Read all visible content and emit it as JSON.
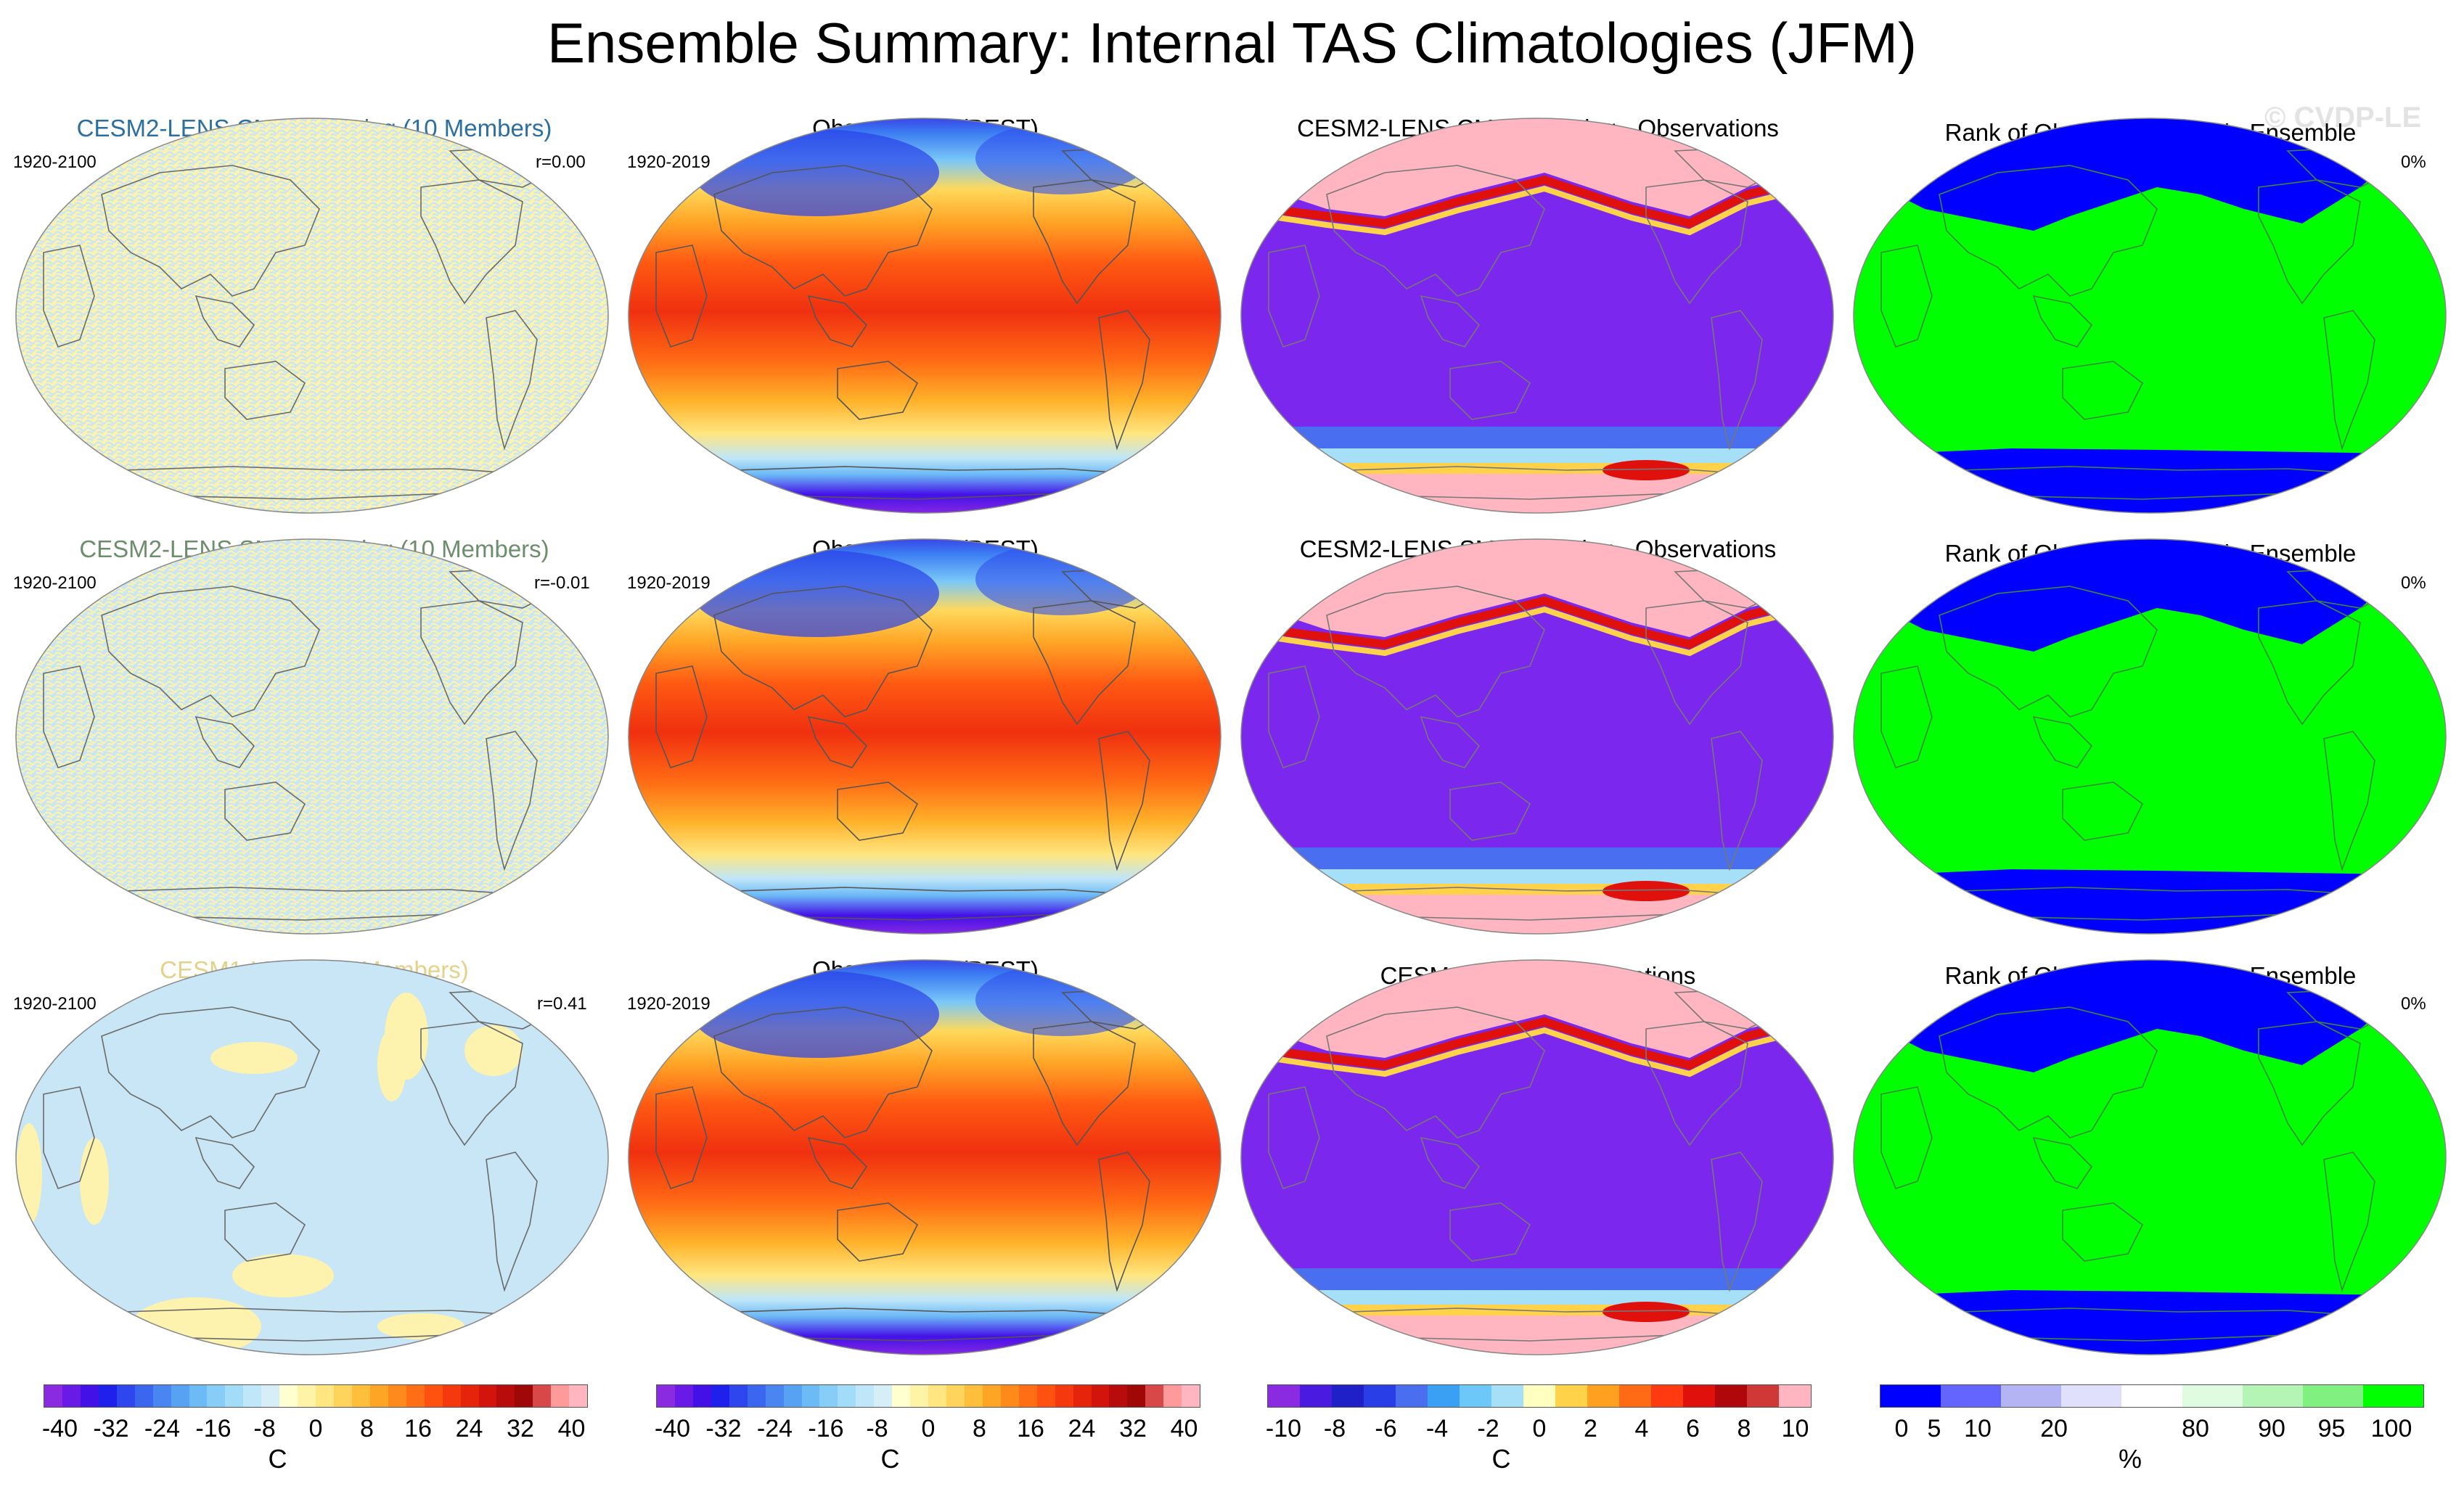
{
  "title": "Ensemble Summary: Internal TAS Climatologies (JFM)",
  "watermark": "© CVDP-LE",
  "colors": {
    "cesm2_cmip6_title": "#2a6fa0",
    "cesm2_smbb_title": "#6c8e6c",
    "cesm1_title": "#e2d28a",
    "land_outline": "#7a7a7a"
  },
  "chart_data": [
    {
      "type": "heatmap",
      "row": 1,
      "col": 1,
      "title": "CESM2-LENS CMIP6 Forcing (10 Members)",
      "period": "1920-2100",
      "stat": "r=0.00",
      "description_of_field": "noise",
      "colorbar": "temperature"
    },
    {
      "type": "heatmap",
      "row": 1,
      "col": 2,
      "title": "Observations (BEST)",
      "period": "1920-2019",
      "stat": "",
      "colorbar": "temperature"
    },
    {
      "type": "heatmap",
      "row": 1,
      "col": 3,
      "title": "CESM2-LENS CMIP6 Forcing - Observations",
      "period": "",
      "stat": "",
      "colorbar": "difference"
    },
    {
      "type": "heatmap",
      "row": 1,
      "col": 4,
      "title": "Rank of Observations within Ensemble",
      "period": "",
      "stat": "0%",
      "colorbar": "rank"
    },
    {
      "type": "heatmap",
      "row": 2,
      "col": 1,
      "title": "CESM2-LENS SMBB Forcing (10 Members)",
      "period": "1920-2100",
      "stat": "r=-0.01",
      "colorbar": "temperature"
    },
    {
      "type": "heatmap",
      "row": 2,
      "col": 2,
      "title": "Observations (BEST)",
      "period": "1920-2019",
      "stat": "",
      "colorbar": "temperature"
    },
    {
      "type": "heatmap",
      "row": 2,
      "col": 3,
      "title": "CESM2-LENS SMBB Forcing - Observations",
      "period": "",
      "stat": "",
      "colorbar": "difference"
    },
    {
      "type": "heatmap",
      "row": 2,
      "col": 4,
      "title": "Rank of Observations within Ensemble",
      "period": "",
      "stat": "0%",
      "colorbar": "rank"
    },
    {
      "type": "heatmap",
      "row": 3,
      "col": 1,
      "title": "CESM1-LENS (10 Members)",
      "period": "1920-2100",
      "stat": "r=0.41",
      "colorbar": "temperature"
    },
    {
      "type": "heatmap",
      "row": 3,
      "col": 2,
      "title": "Observations (BEST)",
      "period": "1920-2019",
      "stat": "",
      "colorbar": "temperature"
    },
    {
      "type": "heatmap",
      "row": 3,
      "col": 3,
      "title": "CESM1-LENS - Observations",
      "period": "",
      "stat": "",
      "colorbar": "difference"
    },
    {
      "type": "heatmap",
      "row": 3,
      "col": 4,
      "title": "Rank of Observations within Ensemble",
      "period": "",
      "stat": "0%",
      "colorbar": "rank"
    }
  ],
  "colorbars": {
    "temperature": {
      "unit": "C",
      "ticks": [
        "-40",
        "-32",
        "-24",
        "-16",
        "-8",
        "0",
        "8",
        "16",
        "24",
        "32",
        "40"
      ],
      "colors": [
        "#8a2be2",
        "#6a1ae6",
        "#4410e8",
        "#2020ec",
        "#2e46ee",
        "#3a66f0",
        "#4a86f2",
        "#58a2f4",
        "#6cbaf6",
        "#86cef8",
        "#a2dcf8",
        "#bfe6f9",
        "#d6eef8",
        "#ffffd0",
        "#fff3a8",
        "#ffe680",
        "#ffd45c",
        "#ffbf3a",
        "#ffa526",
        "#ff8a1c",
        "#ff6e14",
        "#ff5210",
        "#f5380e",
        "#e6240c",
        "#d2140c",
        "#b80c0c",
        "#a00808",
        "#d84848",
        "#ff9a9a",
        "#ffb6c1"
      ]
    },
    "difference": {
      "unit": "C",
      "ticks": [
        "-10",
        "-8",
        "-6",
        "-4",
        "-2",
        "0",
        "2",
        "4",
        "6",
        "8",
        "10"
      ],
      "colors": [
        "#8a2be2",
        "#4a1ae0",
        "#2020c8",
        "#2a3ee8",
        "#4a6ef0",
        "#3aa0f4",
        "#6cc8f8",
        "#a6e0f8",
        "#ffffc0",
        "#ffd24a",
        "#ffa020",
        "#ff6a14",
        "#ff3a10",
        "#e0100c",
        "#b0080a",
        "#d03838",
        "#ffb6c1"
      ]
    },
    "rank": {
      "unit": "%",
      "ticks": [
        "0",
        "5",
        "10",
        "20",
        "80",
        "90",
        "95",
        "100"
      ],
      "colors": [
        "#0000ff",
        "#6464ff",
        "#b4b4f4",
        "#e0e0fc",
        "#ffffff",
        "#e0fce0",
        "#b4f4b4",
        "#80f080",
        "#00ff00"
      ]
    }
  }
}
